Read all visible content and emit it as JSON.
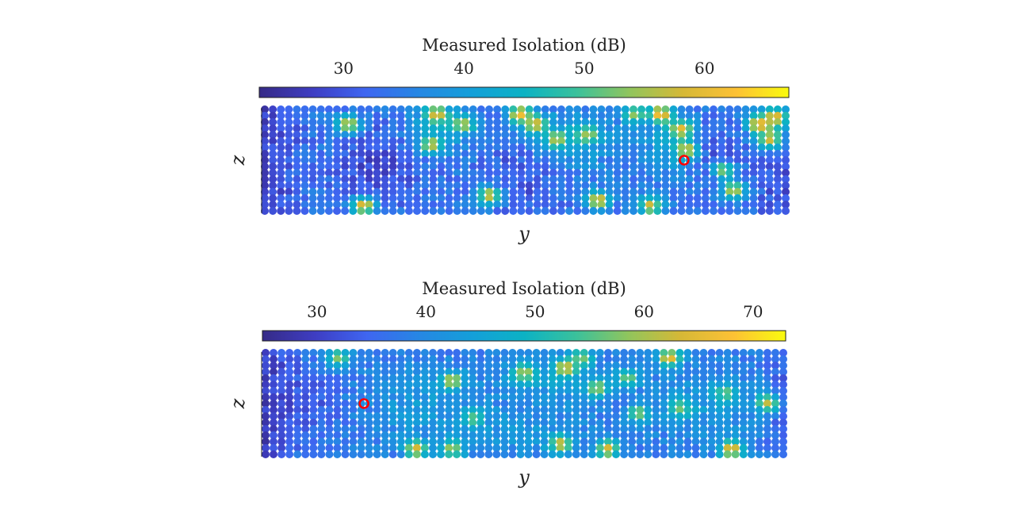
{
  "chart_data": [
    {
      "type": "heatmap",
      "panel": "top",
      "colorbar": {
        "title": "Measured Isolation (dB)",
        "range": [
          23,
          67
        ],
        "ticks": [
          30,
          40,
          50,
          60
        ],
        "colormap": "parula"
      },
      "xlabel": "y",
      "ylabel": "z",
      "grid": {
        "columns": 66,
        "rows": 17
      },
      "field": {
        "base": 34,
        "edges": [
          {
            "side": "left",
            "width": 0.1,
            "strength": 6
          },
          {
            "side": "right",
            "width": 0.08,
            "strength": 5
          }
        ],
        "waves": [
          {
            "ax": 0.22,
            "ay": 0.55,
            "sx": 0.08,
            "sy": 0.35,
            "amp": -6
          },
          {
            "ax": 0.5,
            "ay": 0.6,
            "sx": 0.07,
            "sy": 0.35,
            "amp": -5
          },
          {
            "ax": 0.86,
            "ay": 0.45,
            "sx": 0.06,
            "sy": 0.3,
            "amp": -5
          },
          {
            "ax": 0.33,
            "ay": 0.2,
            "sx": 0.07,
            "sy": 0.25,
            "amp": 7
          },
          {
            "ax": 0.58,
            "ay": 0.3,
            "sx": 0.09,
            "sy": 0.3,
            "amp": 8
          },
          {
            "ax": 0.78,
            "ay": 0.35,
            "sx": 0.06,
            "sy": 0.35,
            "amp": 7
          },
          {
            "ax": 0.98,
            "ay": 0.15,
            "sx": 0.05,
            "sy": 0.2,
            "amp": 10
          }
        ],
        "hotspots": [
          {
            "x": 0.16,
            "y": 0.15,
            "v": 58
          },
          {
            "x": 0.33,
            "y": 0.05,
            "v": 60
          },
          {
            "x": 0.38,
            "y": 0.15,
            "v": 56
          },
          {
            "x": 0.32,
            "y": 0.35,
            "v": 57
          },
          {
            "x": 0.49,
            "y": 0.05,
            "v": 62
          },
          {
            "x": 0.52,
            "y": 0.15,
            "v": 59
          },
          {
            "x": 0.56,
            "y": 0.3,
            "v": 56
          },
          {
            "x": 0.62,
            "y": 0.25,
            "v": 55
          },
          {
            "x": 0.71,
            "y": 0.05,
            "v": 54
          },
          {
            "x": 0.76,
            "y": 0.05,
            "v": 63
          },
          {
            "x": 0.8,
            "y": 0.2,
            "v": 60
          },
          {
            "x": 0.81,
            "y": 0.4,
            "v": 58
          },
          {
            "x": 0.88,
            "y": 0.6,
            "v": 54
          },
          {
            "x": 0.95,
            "y": 0.15,
            "v": 62
          },
          {
            "x": 0.98,
            "y": 0.08,
            "v": 60
          },
          {
            "x": 0.97,
            "y": 0.3,
            "v": 58
          },
          {
            "x": 0.19,
            "y": 0.95,
            "v": 60
          },
          {
            "x": 0.43,
            "y": 0.85,
            "v": 58
          },
          {
            "x": 0.64,
            "y": 0.9,
            "v": 60
          },
          {
            "x": 0.74,
            "y": 0.95,
            "v": 58
          },
          {
            "x": 0.9,
            "y": 0.8,
            "v": 57
          }
        ]
      },
      "marker": {
        "y_frac": 0.805,
        "z_frac": 0.5,
        "color": "#ff0000"
      }
    },
    {
      "type": "heatmap",
      "panel": "bottom",
      "colorbar": {
        "title": "Measured Isolation (dB)",
        "range": [
          25,
          73
        ],
        "ticks": [
          30,
          40,
          50,
          60,
          70
        ],
        "colormap": "parula"
      },
      "xlabel": "y",
      "ylabel": "z",
      "grid": {
        "columns": 66,
        "rows": 17
      },
      "field": {
        "base": 38,
        "edges": [
          {
            "side": "left",
            "width": 0.07,
            "strength": 8
          },
          {
            "side": "right",
            "width": 0.05,
            "strength": 4
          }
        ],
        "waves": [
          {
            "ax": 0.08,
            "ay": 0.5,
            "sx": 0.06,
            "sy": 0.4,
            "amp": -5
          },
          {
            "ax": 0.3,
            "ay": 0.5,
            "sx": 0.1,
            "sy": 0.35,
            "amp": 5
          },
          {
            "ax": 0.55,
            "ay": 0.25,
            "sx": 0.1,
            "sy": 0.25,
            "amp": 6
          },
          {
            "ax": 0.5,
            "ay": 0.8,
            "sx": 0.12,
            "sy": 0.25,
            "amp": 4
          },
          {
            "ax": 0.85,
            "ay": 0.5,
            "sx": 0.1,
            "sy": 0.35,
            "amp": 5
          }
        ],
        "hotspots": [
          {
            "x": 0.14,
            "y": 0.05,
            "v": 58
          },
          {
            "x": 0.36,
            "y": 0.28,
            "v": 62
          },
          {
            "x": 0.5,
            "y": 0.2,
            "v": 60
          },
          {
            "x": 0.58,
            "y": 0.15,
            "v": 64
          },
          {
            "x": 0.61,
            "y": 0.05,
            "v": 58
          },
          {
            "x": 0.7,
            "y": 0.25,
            "v": 57
          },
          {
            "x": 0.78,
            "y": 0.05,
            "v": 66
          },
          {
            "x": 0.64,
            "y": 0.35,
            "v": 60
          },
          {
            "x": 0.72,
            "y": 0.6,
            "v": 58
          },
          {
            "x": 0.8,
            "y": 0.55,
            "v": 57
          },
          {
            "x": 0.89,
            "y": 0.4,
            "v": 56
          },
          {
            "x": 0.97,
            "y": 0.5,
            "v": 62
          },
          {
            "x": 0.29,
            "y": 0.95,
            "v": 64
          },
          {
            "x": 0.36,
            "y": 0.95,
            "v": 60
          },
          {
            "x": 0.57,
            "y": 0.9,
            "v": 63
          },
          {
            "x": 0.66,
            "y": 0.95,
            "v": 64
          },
          {
            "x": 0.9,
            "y": 0.95,
            "v": 66
          },
          {
            "x": 0.4,
            "y": 0.65,
            "v": 56
          }
        ]
      },
      "marker": {
        "y_frac": 0.19,
        "z_frac": 0.5,
        "color": "#ff0000"
      }
    }
  ]
}
